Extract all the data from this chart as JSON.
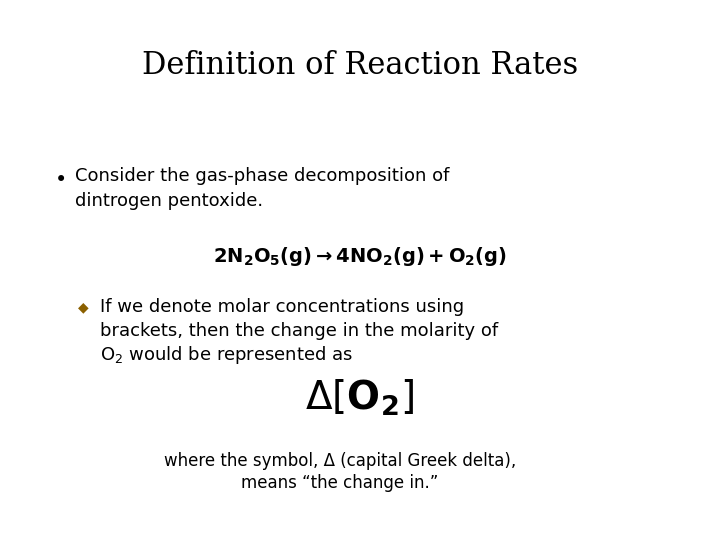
{
  "title": "Definition of Reaction Rates",
  "background_color": "#ffffff",
  "title_color": "#000000",
  "title_fontsize": 22,
  "title_font": "serif",
  "body_fontsize": 13,
  "body_font": "DejaVu Sans",
  "bullet_color": "#000000",
  "diamond_color": "#8B6000",
  "bullet_text_line1": "Consider the gas-phase decomposition of",
  "bullet_text_line2": "dintrogen pentoxide.",
  "diamond_text_line1": "If we denote molar concentrations using",
  "diamond_text_line2": "brackets, then the change in the molarity of",
  "diamond_text_line3": "O₂ would be represented as",
  "footer_line1": "where the symbol, Δ (capital Greek delta),",
  "footer_line2": "means “the change in.”",
  "eq1_fontsize": 14,
  "eq2_fontsize": 28,
  "footer_fontsize": 12
}
